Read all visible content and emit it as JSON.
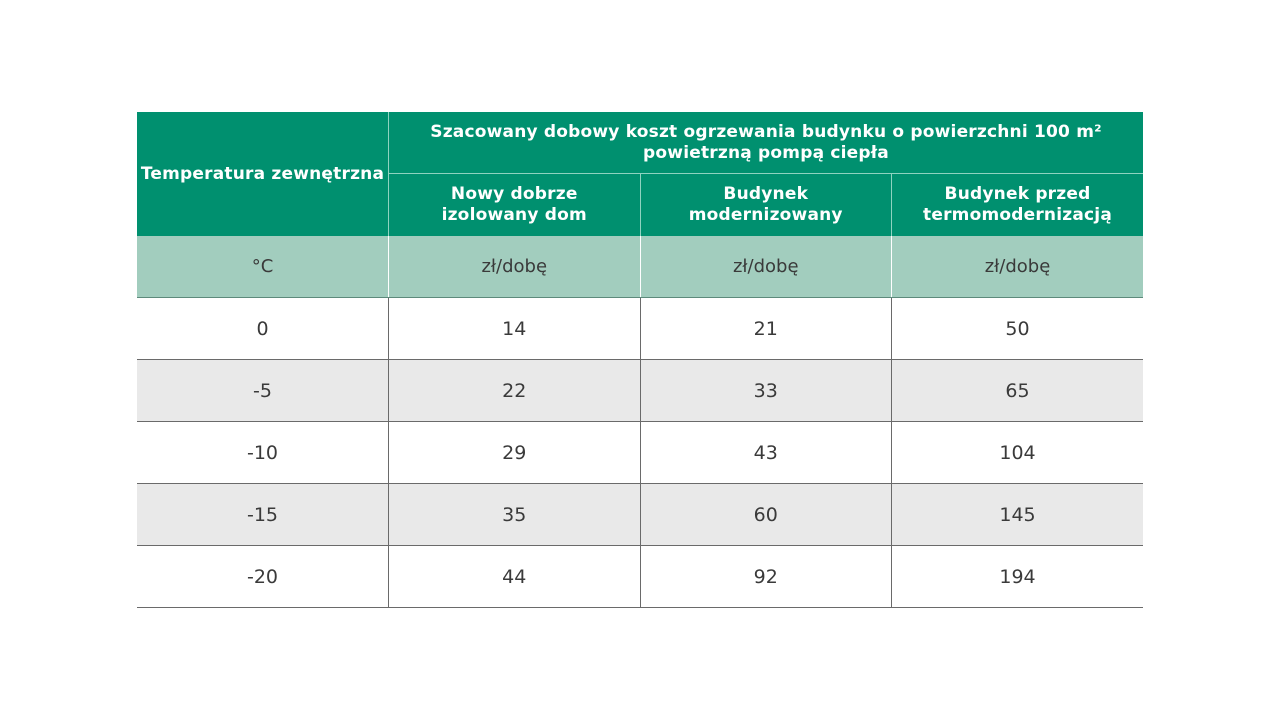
{
  "table": {
    "header": {
      "temp_col": "Temperatura zewnętrzna",
      "group_title_line1": "Szacowany dobowy koszt ogrzewania budynku o powierzchni 100 m²",
      "group_title_line2": "powietrzną pompą ciepła",
      "columns": [
        {
          "line1": "Nowy dobrze",
          "line2": "izolowany dom"
        },
        {
          "line1": "Budynek",
          "line2": "modernizowany"
        },
        {
          "line1": "Budynek przed",
          "line2": "termomodernizacją"
        }
      ]
    },
    "units": [
      "°C",
      "zł/dobę",
      "zł/dobę",
      "zł/dobę"
    ],
    "rows": [
      [
        "0",
        "14",
        "21",
        "50"
      ],
      [
        "-5",
        "22",
        "33",
        "65"
      ],
      [
        "-10",
        "29",
        "43",
        "104"
      ],
      [
        "-15",
        "35",
        "60",
        "145"
      ],
      [
        "-20",
        "44",
        "92",
        "194"
      ]
    ]
  },
  "colors": {
    "header_green": "#00906f",
    "units_row": "#a2cdbe",
    "alt_row": "#e9e9e9"
  }
}
